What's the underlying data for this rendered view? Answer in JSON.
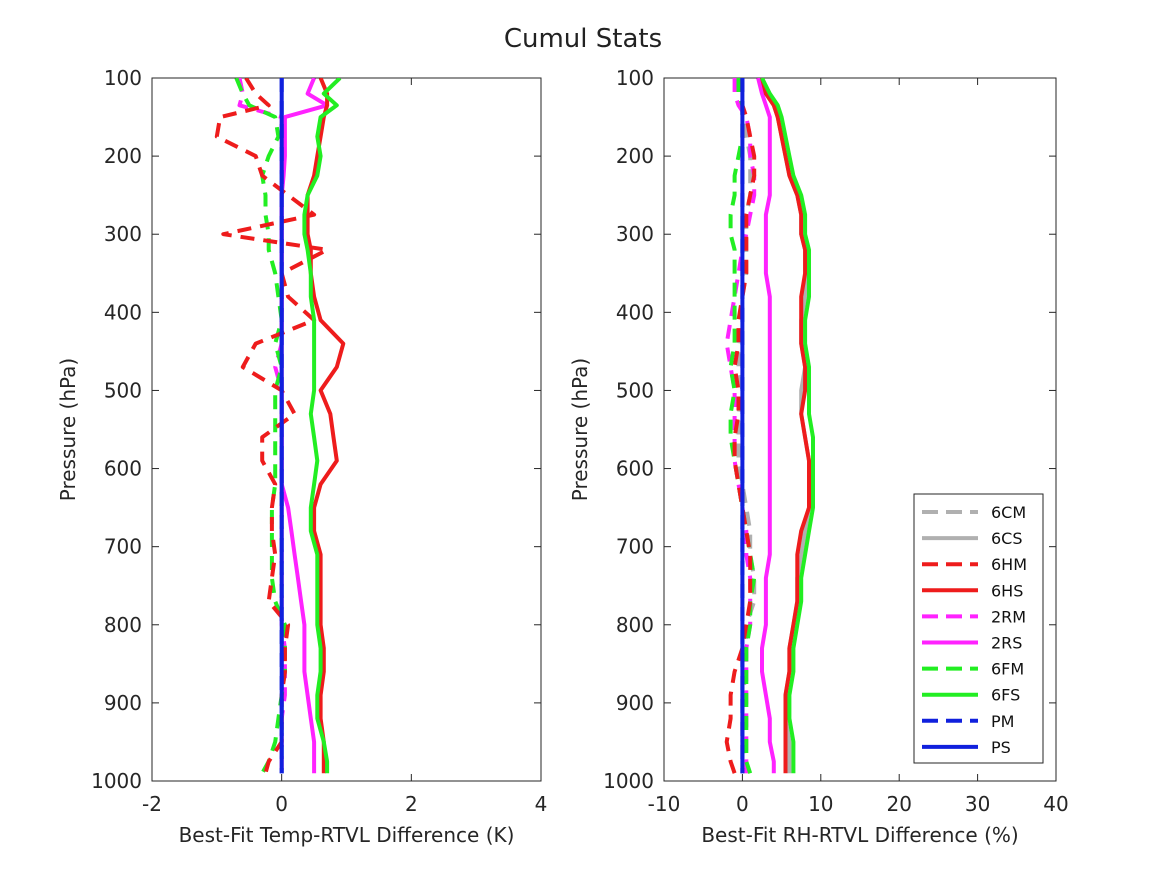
{
  "figure_title": "Cumul Stats",
  "chart_data": [
    {
      "type": "line",
      "orientation": "profile (x = difference, y = pressure)",
      "xlabel": "Best-Fit Temp-RTVL Difference (K)",
      "ylabel": "Pressure (hPa)",
      "xlim": [
        -2,
        4
      ],
      "ylim": [
        100,
        1000
      ],
      "y_reversed": true,
      "xticks": [
        "-2",
        "0",
        "2",
        "4"
      ],
      "yticks": [
        "100",
        "200",
        "300",
        "400",
        "500",
        "600",
        "700",
        "800",
        "900",
        "1000"
      ],
      "y": [
        100,
        120,
        135,
        150,
        175,
        200,
        225,
        250,
        275,
        300,
        320,
        350,
        380,
        410,
        440,
        470,
        500,
        530,
        560,
        590,
        620,
        650,
        680,
        710,
        740,
        770,
        800,
        830,
        860,
        890,
        920,
        950,
        975,
        990
      ],
      "series": [
        {
          "name": "6HM",
          "x": [
            -0.55,
            -0.4,
            -0.2,
            -0.95,
            -1.0,
            -0.4,
            -0.3,
            0.1,
            0.5,
            -0.9,
            0.7,
            0.0,
            0.1,
            0.5,
            -0.4,
            -0.6,
            0.0,
            0.2,
            -0.3,
            -0.3,
            -0.1,
            -0.15,
            -0.15,
            -0.1,
            -0.15,
            -0.2,
            0.1,
            0.05,
            0.05,
            0.0,
            0.0,
            0.0,
            -0.2,
            -0.25
          ]
        },
        {
          "name": "6HS",
          "x": [
            0.6,
            0.7,
            0.7,
            0.65,
            0.6,
            0.55,
            0.5,
            0.4,
            0.4,
            0.4,
            0.45,
            0.45,
            0.5,
            0.6,
            0.95,
            0.85,
            0.6,
            0.75,
            0.8,
            0.85,
            0.6,
            0.5,
            0.5,
            0.6,
            0.6,
            0.6,
            0.6,
            0.65,
            0.65,
            0.6,
            0.6,
            0.65,
            0.65,
            0.65
          ]
        },
        {
          "name": "2RM",
          "x": [
            -0.65,
            -0.6,
            -0.65,
            0.0,
            0.0,
            0.0,
            0.0,
            0.0,
            0.0,
            0.0,
            0.0,
            0.0,
            0.0,
            0.0,
            0.0,
            -0.1,
            0.0,
            0.0,
            0.0,
            0.0,
            0.0,
            0.0,
            0.0,
            0.0,
            0.0,
            0.0,
            0.0,
            0.05,
            0.05,
            0.05,
            0.0,
            0.0,
            0.0,
            0.0
          ]
        },
        {
          "name": "2RS",
          "x": [
            0.5,
            0.4,
            0.7,
            0.05,
            0.05,
            0.05,
            0.03,
            0.0,
            0.0,
            0.0,
            0.0,
            0.0,
            0.0,
            0.0,
            0.0,
            0.0,
            0.0,
            0.0,
            0.0,
            0.0,
            0.0,
            0.1,
            0.15,
            0.2,
            0.25,
            0.3,
            0.35,
            0.35,
            0.35,
            0.4,
            0.45,
            0.5,
            0.5,
            0.5
          ]
        },
        {
          "name": "6FM",
          "x": [
            -0.7,
            -0.6,
            -0.5,
            -0.1,
            -0.05,
            -0.2,
            -0.3,
            -0.25,
            -0.25,
            -0.2,
            -0.2,
            -0.1,
            -0.05,
            0.0,
            -0.1,
            0.0,
            -0.1,
            -0.1,
            -0.1,
            -0.1,
            -0.1,
            -0.15,
            -0.15,
            -0.15,
            -0.15,
            -0.1,
            0.05,
            0.05,
            0.05,
            0.0,
            -0.05,
            -0.1,
            -0.2,
            -0.3
          ]
        },
        {
          "name": "6FS",
          "x": [
            0.9,
            0.65,
            0.85,
            0.6,
            0.55,
            0.6,
            0.55,
            0.4,
            0.35,
            0.35,
            0.4,
            0.45,
            0.45,
            0.5,
            0.5,
            0.5,
            0.5,
            0.45,
            0.5,
            0.55,
            0.5,
            0.45,
            0.45,
            0.55,
            0.55,
            0.55,
            0.55,
            0.6,
            0.6,
            0.55,
            0.55,
            0.65,
            0.7,
            0.7
          ]
        },
        {
          "name": "PM",
          "x": [
            0.0,
            0.0,
            0.0,
            0.0,
            0.0,
            0.0,
            0.0,
            0.0,
            0.0,
            0.0,
            0.0,
            0.0,
            0.0,
            0.0,
            0.0,
            0.0,
            0.0,
            0.0,
            0.0,
            0.0,
            0.0,
            0.0,
            0.0,
            0.0,
            0.0,
            0.0,
            0.0,
            0.0,
            0.0,
            0.0,
            0.0,
            0.0,
            0.0,
            0.0
          ]
        },
        {
          "name": "PS",
          "x": [
            0.0,
            0.0,
            0.0,
            0.0,
            0.0,
            0.0,
            0.0,
            0.0,
            0.0,
            0.0,
            0.0,
            0.0,
            0.0,
            0.0,
            0.0,
            0.0,
            0.0,
            0.0,
            0.0,
            0.0,
            0.0,
            0.0,
            0.0,
            0.0,
            0.0,
            0.0,
            0.0,
            0.0,
            0.0,
            0.0,
            0.0,
            0.0,
            0.0,
            0.0
          ]
        }
      ]
    },
    {
      "type": "line",
      "orientation": "profile (x = difference, y = pressure)",
      "xlabel": "Best-Fit RH-RTVL Difference (%)",
      "ylabel": "Pressure (hPa)",
      "xlim": [
        -10,
        40
      ],
      "ylim": [
        100,
        1000
      ],
      "y_reversed": true,
      "xticks": [
        "-10",
        "0",
        "10",
        "20",
        "30",
        "40"
      ],
      "yticks": [
        "100",
        "200",
        "300",
        "400",
        "500",
        "600",
        "700",
        "800",
        "900",
        "1000"
      ],
      "legend_position": "bottom-right",
      "y": [
        100,
        120,
        135,
        150,
        175,
        200,
        225,
        250,
        275,
        300,
        320,
        350,
        380,
        410,
        440,
        470,
        500,
        530,
        560,
        590,
        620,
        650,
        680,
        710,
        740,
        770,
        800,
        830,
        860,
        890,
        920,
        950,
        975,
        990
      ],
      "series": [
        {
          "name": "6CM",
          "x": [
            0.0,
            0.0,
            0.0,
            0.0,
            0.5,
            1.0,
            1.0,
            1.0,
            0.5,
            0.5,
            0.5,
            0.5,
            0.0,
            0.0,
            -0.5,
            -0.5,
            0.0,
            -0.5,
            -0.5,
            -0.5,
            0.0,
            0.5,
            1.0,
            1.0,
            1.5,
            1.5,
            0.5,
            0.5,
            0.5,
            0.0,
            0.0,
            0.0,
            0.5,
            0.5
          ]
        },
        {
          "name": "6CS",
          "x": [
            2.5,
            3.0,
            4.0,
            4.5,
            5.0,
            5.5,
            6.0,
            7.0,
            7.5,
            7.5,
            8.0,
            8.0,
            8.0,
            7.5,
            7.5,
            8.0,
            7.5,
            7.5,
            8.0,
            8.5,
            8.5,
            8.5,
            8.0,
            7.5,
            7.0,
            7.0,
            6.5,
            6.0,
            6.0,
            5.5,
            5.5,
            6.0,
            6.0,
            6.0
          ]
        },
        {
          "name": "6HM",
          "x": [
            0.0,
            0.0,
            0.0,
            0.5,
            1.0,
            1.5,
            1.5,
            1.0,
            0.5,
            0.5,
            0.5,
            0.5,
            0.0,
            -0.5,
            -0.5,
            -1.0,
            -0.5,
            -0.5,
            -1.0,
            -1.0,
            -0.5,
            0.0,
            0.5,
            1.0,
            1.0,
            1.0,
            0.5,
            0.0,
            -1.0,
            -1.5,
            -1.5,
            -2.0,
            -1.5,
            -1.0
          ]
        },
        {
          "name": "6HS",
          "x": [
            2.5,
            3.0,
            4.0,
            4.5,
            5.0,
            5.5,
            6.0,
            7.0,
            7.5,
            7.5,
            8.0,
            8.0,
            7.5,
            7.5,
            7.5,
            8.0,
            8.0,
            7.5,
            8.0,
            8.5,
            8.5,
            8.5,
            7.5,
            7.0,
            7.0,
            7.0,
            6.5,
            6.0,
            6.0,
            5.5,
            5.5,
            5.5,
            5.5,
            5.5
          ]
        },
        {
          "name": "2RM",
          "x": [
            -1.0,
            -1.0,
            -0.5,
            0.5,
            1.0,
            1.0,
            1.5,
            1.5,
            1.0,
            0.5,
            0.0,
            -0.5,
            -1.0,
            -1.5,
            -2.0,
            -1.5,
            -1.0,
            -1.0,
            -1.0,
            -1.0,
            -0.5,
            0.0,
            0.5,
            0.5,
            1.0,
            1.0,
            1.0,
            0.5,
            0.5,
            0.5,
            0.5,
            0.5,
            0.5,
            0.5
          ]
        },
        {
          "name": "2RS",
          "x": [
            2.0,
            2.5,
            3.0,
            3.5,
            3.5,
            3.5,
            3.5,
            3.5,
            3.0,
            3.0,
            3.0,
            3.0,
            3.5,
            3.5,
            3.5,
            3.5,
            3.5,
            3.5,
            3.5,
            3.5,
            3.5,
            3.5,
            3.5,
            3.5,
            3.0,
            3.0,
            3.0,
            2.5,
            2.5,
            3.0,
            3.5,
            3.5,
            4.0,
            4.0
          ]
        },
        {
          "name": "6FM",
          "x": [
            -0.5,
            -0.5,
            0.0,
            0.0,
            0.0,
            -0.5,
            -1.0,
            -1.0,
            -1.5,
            -1.5,
            -1.0,
            -1.0,
            -1.0,
            -1.0,
            -1.0,
            -1.5,
            -1.0,
            -1.5,
            -1.5,
            -1.0,
            -0.5,
            0.0,
            0.5,
            1.0,
            1.5,
            1.0,
            1.0,
            0.5,
            0.5,
            0.5,
            0.5,
            0.5,
            0.5,
            1.0
          ]
        },
        {
          "name": "6FS",
          "x": [
            2.5,
            3.5,
            4.5,
            5.0,
            5.5,
            6.0,
            6.5,
            7.5,
            8.0,
            8.0,
            8.5,
            8.5,
            8.5,
            8.0,
            8.0,
            8.5,
            8.5,
            8.5,
            9.0,
            9.0,
            9.0,
            9.0,
            8.5,
            8.0,
            7.5,
            7.5,
            7.0,
            6.5,
            6.5,
            6.0,
            6.0,
            6.5,
            6.5,
            6.5
          ]
        },
        {
          "name": "PM",
          "x": [
            0.0,
            0.0,
            0.0,
            0.0,
            0.0,
            0.0,
            0.0,
            0.0,
            0.0,
            0.0,
            0.0,
            0.0,
            0.0,
            0.0,
            0.0,
            0.0,
            0.0,
            0.0,
            0.0,
            0.0,
            0.0,
            0.0,
            0.0,
            0.0,
            0.0,
            0.0,
            0.0,
            0.0,
            0.0,
            0.0,
            0.0,
            0.0,
            0.0,
            0.0
          ]
        },
        {
          "name": "PS",
          "x": [
            0.0,
            0.0,
            0.0,
            0.0,
            0.0,
            0.0,
            0.0,
            0.0,
            0.0,
            0.0,
            0.0,
            0.0,
            0.0,
            0.0,
            0.0,
            0.0,
            0.0,
            0.0,
            0.0,
            0.0,
            0.0,
            0.0,
            0.0,
            0.0,
            0.0,
            0.0,
            0.0,
            0.0,
            0.0,
            0.0,
            0.0,
            0.0,
            0.0,
            0.0
          ]
        }
      ]
    }
  ],
  "legend": [
    {
      "name": "6CM",
      "color": "#b0b0b0",
      "style": "dashed"
    },
    {
      "name": "6CS",
      "color": "#b0b0b0",
      "style": "solid"
    },
    {
      "name": "6HM",
      "color": "#ee1c1c",
      "style": "dashed"
    },
    {
      "name": "6HS",
      "color": "#ee1c1c",
      "style": "solid"
    },
    {
      "name": "2RM",
      "color": "#ff22ff",
      "style": "dashed"
    },
    {
      "name": "2RS",
      "color": "#ff22ff",
      "style": "solid"
    },
    {
      "name": "6FM",
      "color": "#22ee22",
      "style": "dashed"
    },
    {
      "name": "6FS",
      "color": "#22ee22",
      "style": "solid"
    },
    {
      "name": "PM",
      "color": "#1020dd",
      "style": "dashed"
    },
    {
      "name": "PS",
      "color": "#1020dd",
      "style": "solid"
    }
  ]
}
